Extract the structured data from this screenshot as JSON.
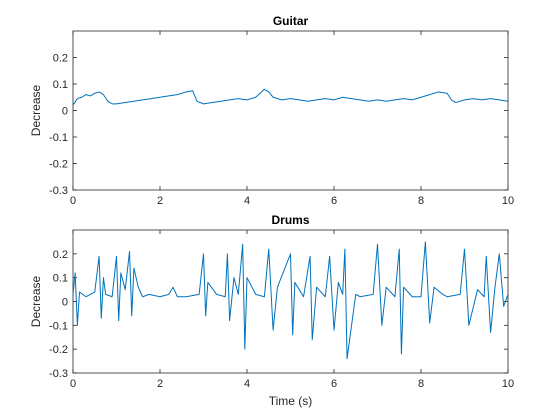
{
  "chart_data": [
    {
      "type": "line",
      "title": "Guitar",
      "xlabel": "",
      "ylabel": "Decrease",
      "xlim": [
        0,
        10
      ],
      "ylim": [
        -0.3,
        0.3
      ],
      "xticks": [
        "0",
        "2",
        "4",
        "6",
        "8",
        "10"
      ],
      "yticks": [
        "-0.3",
        "-0.2",
        "-0.1",
        "0",
        "0.1",
        "0.2"
      ],
      "grid": false,
      "color": "#0072BD",
      "series": [
        {
          "x": [
            0,
            0.1,
            0.2,
            0.3,
            0.4,
            0.5,
            0.6,
            0.7,
            0.8,
            0.9,
            1.0,
            1.2,
            1.4,
            1.6,
            1.8,
            2.0,
            2.2,
            2.4,
            2.6,
            2.75,
            2.85,
            3.0,
            3.2,
            3.4,
            3.6,
            3.8,
            4.0,
            4.2,
            4.4,
            4.5,
            4.6,
            4.8,
            5.0,
            5.2,
            5.4,
            5.6,
            5.8,
            6.0,
            6.2,
            6.4,
            6.6,
            6.8,
            7.0,
            7.2,
            7.4,
            7.6,
            7.8,
            8.0,
            8.2,
            8.4,
            8.6,
            8.7,
            8.8,
            9.0,
            9.2,
            9.4,
            9.6,
            9.8,
            10.0
          ],
          "values": [
            0.02,
            0.045,
            0.05,
            0.06,
            0.055,
            0.065,
            0.07,
            0.06,
            0.035,
            0.025,
            0.025,
            0.03,
            0.035,
            0.04,
            0.045,
            0.05,
            0.055,
            0.06,
            0.07,
            0.075,
            0.035,
            0.025,
            0.03,
            0.035,
            0.04,
            0.045,
            0.04,
            0.05,
            0.08,
            0.07,
            0.05,
            0.04,
            0.045,
            0.04,
            0.035,
            0.04,
            0.045,
            0.04,
            0.05,
            0.045,
            0.04,
            0.035,
            0.04,
            0.035,
            0.04,
            0.045,
            0.04,
            0.05,
            0.06,
            0.07,
            0.065,
            0.04,
            0.03,
            0.04,
            0.045,
            0.04,
            0.045,
            0.04,
            0.035
          ]
        }
      ]
    },
    {
      "type": "line",
      "title": "Drums",
      "xlabel": "Time (s)",
      "ylabel": "Decrease",
      "xlim": [
        0,
        10
      ],
      "ylim": [
        -0.3,
        0.3
      ],
      "xticks": [
        "0",
        "2",
        "4",
        "6",
        "8",
        "10"
      ],
      "yticks": [
        "-0.3",
        "-0.2",
        "-0.1",
        "0",
        "0.1",
        "0.2"
      ],
      "grid": false,
      "color": "#0072BD",
      "series": [
        {
          "x": [
            0,
            0.05,
            0.1,
            0.15,
            0.3,
            0.5,
            0.6,
            0.65,
            0.7,
            0.75,
            0.9,
            1.0,
            1.05,
            1.1,
            1.2,
            1.3,
            1.35,
            1.4,
            1.5,
            1.6,
            1.75,
            2.0,
            2.2,
            2.3,
            2.4,
            2.6,
            2.9,
            3.0,
            3.05,
            3.1,
            3.3,
            3.5,
            3.55,
            3.6,
            3.7,
            3.8,
            3.9,
            3.95,
            4.0,
            4.2,
            4.4,
            4.5,
            4.6,
            4.7,
            5.0,
            5.05,
            5.1,
            5.3,
            5.45,
            5.5,
            5.6,
            5.8,
            5.9,
            6.0,
            6.1,
            6.2,
            6.25,
            6.3,
            6.5,
            6.6,
            6.9,
            7.0,
            7.1,
            7.2,
            7.4,
            7.5,
            7.55,
            7.6,
            7.8,
            8.0,
            8.1,
            8.2,
            8.3,
            8.5,
            8.6,
            8.9,
            9.0,
            9.1,
            9.3,
            9.45,
            9.5,
            9.6,
            9.7,
            9.8,
            9.9,
            10.0
          ],
          "values": [
            0.03,
            0.12,
            -0.1,
            0.04,
            0.02,
            0.04,
            0.19,
            -0.07,
            0.1,
            0.03,
            0.02,
            0.19,
            -0.08,
            0.12,
            0.05,
            0.21,
            -0.06,
            0.14,
            0.06,
            0.02,
            0.03,
            0.02,
            0.03,
            0.06,
            0.02,
            0.02,
            0.03,
            0.2,
            -0.06,
            0.08,
            0.03,
            0.02,
            0.2,
            -0.08,
            0.1,
            0.03,
            0.24,
            -0.2,
            0.1,
            0.03,
            0.02,
            0.22,
            -0.12,
            0.06,
            0.2,
            -0.14,
            0.08,
            0.02,
            0.19,
            -0.16,
            0.06,
            0.02,
            0.19,
            -0.12,
            0.08,
            0.03,
            0.22,
            -0.24,
            0.03,
            0.02,
            0.03,
            0.24,
            -0.1,
            0.06,
            0.02,
            0.22,
            -0.22,
            0.06,
            0.02,
            0.02,
            0.25,
            -0.09,
            0.06,
            0.03,
            0.02,
            0.03,
            0.22,
            -0.1,
            0.05,
            0.02,
            0.19,
            -0.13,
            0.06,
            0.2,
            -0.02,
            0.03
          ]
        }
      ]
    }
  ]
}
